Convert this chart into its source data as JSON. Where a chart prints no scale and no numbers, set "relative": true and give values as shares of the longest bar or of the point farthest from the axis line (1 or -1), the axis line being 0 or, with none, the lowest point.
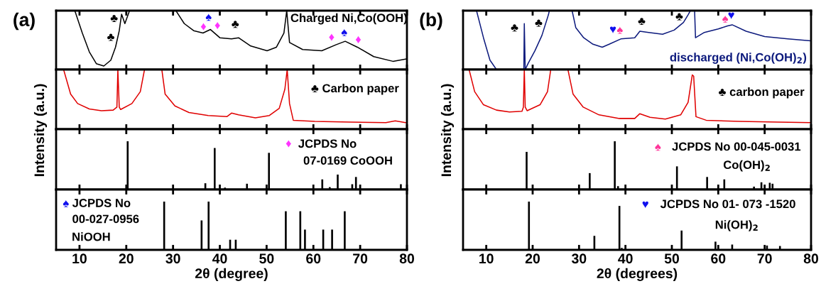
{
  "chart_data": [
    {
      "type": "line",
      "title": "(a)",
      "relative": true,
      "xlim": [
        5,
        80
      ],
      "xticks": [
        10,
        20,
        30,
        40,
        50,
        60,
        70,
        80
      ],
      "tick_labels": false,
      "x": [
        9.0,
        10.6,
        12.1,
        13.6,
        15.2,
        16.7,
        17.7,
        18.5,
        19.0,
        19.7,
        20.7,
        25.0,
        30.6,
        32.4,
        34.4,
        36.4,
        38.0,
        40.0,
        42.5,
        44.0,
        46.6,
        50.1,
        52.1,
        53.7,
        54.3,
        54.9,
        57.7,
        61.8,
        64.8,
        66.8,
        69.4,
        72.9,
        77.0,
        79.8
      ],
      "series": [
        {
          "color": "#000000",
          "values": [
            1.0,
            0.62,
            0.3,
            0.1,
            0.06,
            0.16,
            0.38,
            0.66,
            0.94,
            0.78,
            1.0,
            null,
            1.0,
            0.78,
            0.66,
            0.62,
            0.68,
            0.54,
            0.52,
            0.54,
            0.4,
            0.32,
            0.38,
            0.62,
            1.0,
            0.46,
            0.34,
            0.32,
            0.42,
            0.48,
            0.38,
            0.22,
            0.14,
            0.18
          ]
        }
      ],
      "annotations": [
        "♣",
        "♣",
        "♦",
        "♠",
        "♦",
        "♣",
        "♦",
        "♠",
        "♦",
        "Charged Ni,Co(OOH)"
      ]
    },
    {
      "type": "line",
      "relative": true,
      "xlim": [
        5,
        80
      ],
      "xticks": [
        10,
        20,
        30,
        40,
        50,
        60,
        70,
        80
      ],
      "tick_labels": false,
      "ylabel": "Intensity (a.u.)",
      "x": [
        6.6,
        8.1,
        9.6,
        12.1,
        14.7,
        17.2,
        18.0,
        18.2,
        18.5,
        18.8,
        21.2,
        23.0,
        23.9,
        25.0,
        27.6,
        28.3,
        30.4,
        33.4,
        37.5,
        41.5,
        42.5,
        44.0,
        47.6,
        50.6,
        52.7,
        53.9,
        54.4,
        54.9,
        55.7,
        60.3,
        67.9,
        75.5,
        77.5,
        79.8
      ],
      "series": [
        {
          "color": "#e00000",
          "values": [
            1.0,
            0.59,
            0.43,
            0.34,
            0.31,
            0.32,
            0.37,
            1.0,
            0.37,
            0.33,
            0.43,
            0.63,
            1.0,
            null,
            1.0,
            0.59,
            0.39,
            0.28,
            0.23,
            0.21,
            0.27,
            0.24,
            0.19,
            0.23,
            0.35,
            0.67,
            1.0,
            0.43,
            0.15,
            0.13,
            0.12,
            0.11,
            0.14,
            0.11
          ]
        }
      ],
      "annotations": [
        "♣ Carbon paper"
      ]
    },
    {
      "type": "bar",
      "relative": true,
      "xlim": [
        5,
        80
      ],
      "xticks": [
        10,
        20,
        30,
        40,
        50,
        60,
        70,
        80
      ],
      "tick_labels": false,
      "x": [
        20.3,
        36.9,
        38.9,
        41.1,
        45.8,
        50.5,
        61.9,
        63.5,
        65.2,
        68.3,
        69.1,
        77.4,
        78.7
      ],
      "series": [
        {
          "color": "#000000",
          "values": [
            1.0,
            0.13,
            0.86,
            0.04,
            0.12,
            0.76,
            0.21,
            0.05,
            0.31,
            0.11,
            0.26,
            null,
            0.11
          ]
        }
      ],
      "annotations": [
        "♦",
        "JCPDS No",
        "07-0169 CoOOH"
      ]
    },
    {
      "type": "bar",
      "relative": true,
      "xlim": [
        5,
        80
      ],
      "xticks": [
        10,
        20,
        30,
        40,
        50,
        60,
        70,
        80
      ],
      "tick_labels": "x",
      "xlabel": "2θ (degree)",
      "x": [
        28.1,
        36.1,
        37.6,
        42.2,
        43.4,
        54.1,
        57.2,
        58.2,
        62.1,
        64.0,
        66.7
      ],
      "series": [
        {
          "color": "#000000",
          "values": [
            1.0,
            0.61,
            1.0,
            0.21,
            0.21,
            0.8,
            0.8,
            0.42,
            0.42,
            0.42,
            0.8
          ]
        }
      ],
      "annotations": [
        "♠",
        "JCPDS No",
        "00-027-0956",
        "NiOOH"
      ]
    },
    {
      "type": "line",
      "title": "(b)",
      "relative": true,
      "xlim": [
        5,
        80
      ],
      "xticks": [
        10,
        20,
        30,
        40,
        50,
        60,
        70,
        80
      ],
      "tick_labels": false,
      "x": [
        7.9,
        9.4,
        10.8,
        12.2,
        15.0,
        18.1,
        18.2,
        18.4,
        19.0,
        20.5,
        22.0,
        23.4,
        23.6,
        26.0,
        28.5,
        29.3,
        31.0,
        33.0,
        35.0,
        36.5,
        39.0,
        42.0,
        43.1,
        45.0,
        48.0,
        50.5,
        52.5,
        53.5,
        54.0,
        54.9,
        55.1,
        57.0,
        60.0,
        62.0,
        63.0,
        66.0,
        70.0,
        75.0,
        79.8
      ],
      "series": [
        {
          "color": "#0d1a7d",
          "values": [
            1.0,
            0.54,
            0.16,
            0.0,
            null,
            0.0,
            0.78,
            0.0,
            0.1,
            0.32,
            0.58,
            0.93,
            1.0,
            null,
            1.0,
            0.71,
            0.54,
            0.43,
            0.38,
            0.43,
            0.52,
            0.54,
            0.65,
            0.63,
            0.6,
            0.67,
            0.8,
            0.93,
            1.0,
            1.0,
            0.54,
            0.63,
            0.69,
            0.74,
            0.76,
            0.65,
            0.56,
            0.52,
            0.49
          ]
        }
      ],
      "annotations": [
        "♣",
        "♣",
        "♥",
        "♠",
        "♣",
        "♣",
        "♠",
        "♥",
        "discharged (Ni,Co(OH)$_{2}$)"
      ]
    },
    {
      "type": "line",
      "relative": true,
      "xlim": [
        5,
        80
      ],
      "xticks": [
        10,
        20,
        30,
        40,
        50,
        60,
        70,
        80
      ],
      "tick_labels": false,
      "ylabel": "Intensity (a.u.)",
      "x": [
        6.3,
        7.5,
        9.4,
        12.2,
        15.0,
        17.7,
        18.0,
        18.2,
        18.4,
        18.8,
        21.6,
        23.2,
        23.9,
        25.5,
        27.6,
        28.7,
        30.9,
        34.3,
        38.7,
        42.0,
        43.1,
        45.3,
        48.6,
        51.9,
        53.5,
        54.4,
        54.7,
        55.2,
        57.4,
        64.6,
        72.8,
        79.8
      ],
      "series": [
        {
          "color": "#e00000",
          "values": [
            1.0,
            0.63,
            0.41,
            0.32,
            0.29,
            0.3,
            0.37,
            1.0,
            0.37,
            0.31,
            0.41,
            0.63,
            1.0,
            null,
            1.0,
            0.59,
            0.37,
            0.24,
            0.18,
            0.18,
            0.26,
            0.2,
            0.17,
            0.24,
            0.45,
            0.91,
            0.89,
            0.21,
            0.15,
            0.13,
            0.12,
            0.11
          ]
        }
      ],
      "annotations": [
        "♣ carbon paper"
      ]
    },
    {
      "type": "bar",
      "relative": true,
      "xlim": [
        5,
        80
      ],
      "xticks": [
        10,
        20,
        30,
        40,
        50,
        60,
        70,
        80
      ],
      "tick_labels": false,
      "x": [
        18.7,
        32.3,
        37.7,
        38.4,
        51.1,
        57.6,
        59.5,
        61.3,
        67.7,
        69.3,
        71.1,
        71.7
      ],
      "series": [
        {
          "color": "#000000",
          "values": [
            0.78,
            0.34,
            1.0,
            0.07,
            0.48,
            0.26,
            null,
            0.21,
            0.06,
            0.15,
            0.14,
            0.12
          ]
        }
      ],
      "annotations": [
        "♠",
        "JCPDS No 00-045-0031",
        "Co(OH)$_{2}$"
      ]
    },
    {
      "type": "bar",
      "relative": true,
      "xlim": [
        5,
        80
      ],
      "xticks": [
        10,
        20,
        30,
        40,
        50,
        60,
        70,
        80
      ],
      "tick_labels": "x",
      "xlabel": "2θ (degrees)",
      "x": [
        19.2,
        33.3,
        38.7,
        39.2,
        52.1,
        59.4,
        60.2,
        63.0,
        69.8,
        70.5,
        73.3
      ],
      "series": [
        {
          "color": "#000000",
          "values": [
            1.0,
            0.29,
            0.91,
            0.04,
            0.4,
            0.17,
            null,
            0.11,
            null,
            0.09,
            0.08
          ]
        }
      ],
      "annotations": [
        "♥",
        "JCPDS No 01- 073 -1520",
        "Ni(OH)$_{2}$"
      ]
    }
  ]
}
